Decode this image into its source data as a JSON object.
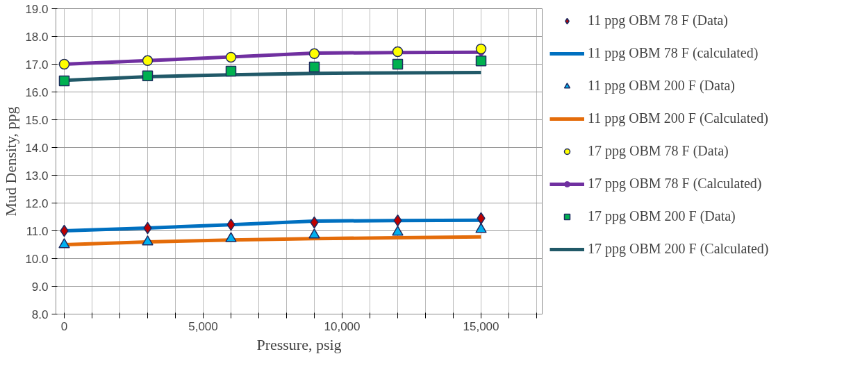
{
  "chart_data": {
    "type": "scatter",
    "xlabel": "Pressure, psig",
    "ylabel": "Mud Density, ppg",
    "x": [
      0,
      3000,
      6000,
      9000,
      12000,
      15000
    ],
    "xlim": [
      -300,
      17200
    ],
    "ylim": [
      8.0,
      19.0
    ],
    "xticks": [
      {
        "value": 0,
        "label": "0"
      },
      {
        "value": 1000,
        "label": null
      },
      {
        "value": 2000,
        "label": null
      },
      {
        "value": 3000,
        "label": null
      },
      {
        "value": 4000,
        "label": null
      },
      {
        "value": 5000,
        "label": "5,000"
      },
      {
        "value": 6000,
        "label": null
      },
      {
        "value": 7000,
        "label": null
      },
      {
        "value": 8000,
        "label": null
      },
      {
        "value": 9000,
        "label": null
      },
      {
        "value": 10000,
        "label": "10,000"
      },
      {
        "value": 11000,
        "label": null
      },
      {
        "value": 12000,
        "label": null
      },
      {
        "value": 13000,
        "label": null
      },
      {
        "value": 14000,
        "label": null
      },
      {
        "value": 15000,
        "label": "15,000"
      },
      {
        "value": 16000,
        "label": null
      },
      {
        "value": 17000,
        "label": null
      }
    ],
    "yticks": [
      {
        "value": 8,
        "label": "8.0"
      },
      {
        "value": 9,
        "label": "9.0"
      },
      {
        "value": 10,
        "label": "10.0"
      },
      {
        "value": 11,
        "label": "11.0"
      },
      {
        "value": 12,
        "label": "12.0"
      },
      {
        "value": 13,
        "label": "13.0"
      },
      {
        "value": 14,
        "label": "14.0"
      },
      {
        "value": 15,
        "label": "15.0"
      },
      {
        "value": 16,
        "label": "16.0"
      },
      {
        "value": 17,
        "label": "17.0"
      },
      {
        "value": 18,
        "label": "18.0"
      },
      {
        "value": 19,
        "label": "19.0"
      }
    ],
    "grid": true,
    "legend": "right",
    "series": [
      {
        "name": "11 ppg OBM 78 F (Data)",
        "marker": "diamond",
        "color": "#c00000",
        "values": [
          11.0,
          11.1,
          11.22,
          11.3,
          11.37,
          11.45
        ]
      },
      {
        "name": "11 ppg OBM 78 F (calculated)",
        "type": "line",
        "marker": "none",
        "color": "#0070c0",
        "values": [
          11.0,
          11.1,
          11.22,
          11.35,
          11.37,
          11.38
        ]
      },
      {
        "name": "11 ppg OBM 200 F (Data)",
        "marker": "triangle",
        "color": "#00b0f0",
        "values": [
          10.5,
          10.6,
          10.72,
          10.85,
          10.95,
          11.05
        ]
      },
      {
        "name": "11 ppg OBM 200 F (Calculated)",
        "type": "line",
        "marker": "none",
        "color": "#e46c0a",
        "values": [
          10.5,
          10.6,
          10.67,
          10.72,
          10.75,
          10.78
        ]
      },
      {
        "name": "17 ppg OBM 78 F (Data)",
        "marker": "circle",
        "color": "#ffff00",
        "values": [
          17.0,
          17.13,
          17.25,
          17.38,
          17.45,
          17.55
        ]
      },
      {
        "name": "17 ppg OBM 78 F (Calculated)",
        "type": "line",
        "marker": "circle",
        "color": "#7030a0",
        "values": [
          17.0,
          17.13,
          17.26,
          17.4,
          17.42,
          17.43
        ]
      },
      {
        "name": "17 ppg OBM 200 F (Data)",
        "marker": "square",
        "color": "#00b050",
        "values": [
          16.4,
          16.58,
          16.75,
          16.9,
          17.0,
          17.12
        ]
      },
      {
        "name": "17 ppg OBM 200 F (Calculated)",
        "type": "line",
        "marker": "none",
        "color": "#215968",
        "values": [
          16.42,
          16.55,
          16.62,
          16.67,
          16.69,
          16.7
        ]
      }
    ]
  }
}
